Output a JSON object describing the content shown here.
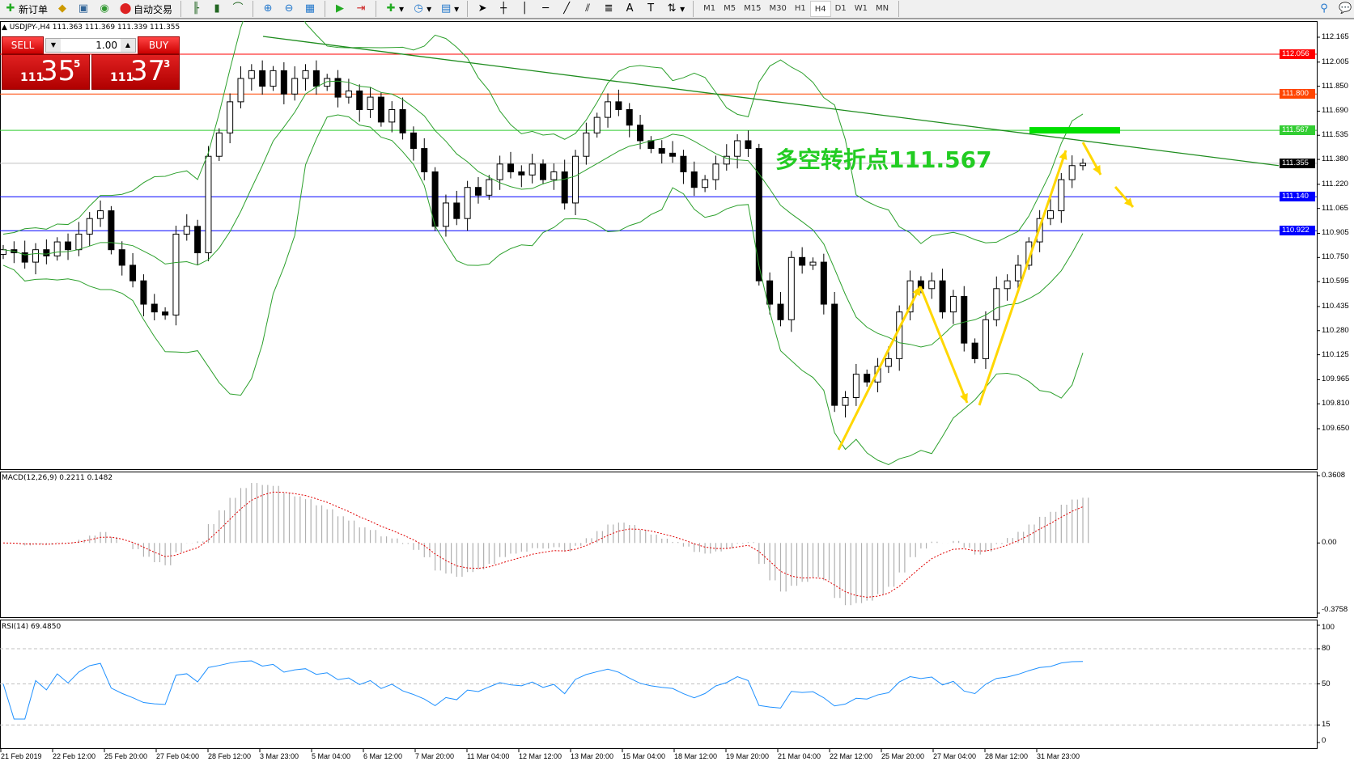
{
  "toolbar": {
    "new_order": "新订单",
    "auto_trading": "自动交易",
    "timeframes": [
      "M1",
      "M5",
      "M15",
      "M30",
      "H1",
      "H4",
      "D1",
      "W1",
      "MN"
    ],
    "active_timeframe": "H4"
  },
  "chart_header": "USDJPY-,H4  111.363 111.369 111.339 111.355",
  "trade_panel": {
    "sell_label": "SELL",
    "buy_label": "BUY",
    "lots": "1.00",
    "sell_prefix": "111",
    "sell_big": "35",
    "sell_sup": "5",
    "buy_prefix": "111",
    "buy_big": "37",
    "buy_sup": "3"
  },
  "annotation": "多空转折点111.567",
  "colors": {
    "bull": "#ffffff",
    "bear": "#000000",
    "bands": "#2ca02c",
    "trendline": "#1e8c1e",
    "macd_signal": "#e00000",
    "macd_hist": "#b0b0b0",
    "rsi": "#1e90ff",
    "arrows": "#ffd700",
    "zone": "#00e000"
  },
  "chart_data": [
    {
      "type": "candlestick",
      "symbol": "USDJPY-",
      "timeframe": "H4",
      "ylim": [
        109.65,
        112.165
      ],
      "y_ticks": [
        "112.165",
        "112.005",
        "111.850",
        "111.690",
        "111.535",
        "111.380",
        "111.220",
        "111.065",
        "110.905",
        "110.750",
        "110.595",
        "110.435",
        "110.280",
        "110.125",
        "109.965",
        "109.810",
        "109.650"
      ],
      "closes": [
        110.8,
        110.78,
        110.72,
        110.8,
        110.76,
        110.85,
        110.8,
        110.9,
        111.0,
        111.05,
        110.8,
        110.7,
        110.6,
        110.45,
        110.4,
        110.38,
        110.9,
        110.95,
        110.78,
        111.4,
        111.55,
        111.75,
        111.9,
        111.95,
        111.85,
        111.95,
        111.8,
        111.9,
        111.95,
        111.85,
        111.9,
        111.78,
        111.82,
        111.7,
        111.78,
        111.62,
        111.7,
        111.55,
        111.45,
        111.3,
        110.95,
        111.1,
        111.0,
        111.2,
        111.15,
        111.25,
        111.35,
        111.3,
        111.28,
        111.35,
        111.25,
        111.3,
        111.1,
        111.4,
        111.55,
        111.65,
        111.75,
        111.7,
        111.6,
        111.5,
        111.45,
        111.42,
        111.4,
        111.3,
        111.2,
        111.25,
        111.35,
        111.4,
        111.5,
        111.45,
        110.6,
        110.45,
        110.35,
        110.75,
        110.7,
        110.72,
        110.45,
        109.8,
        109.85,
        110.0,
        109.95,
        110.05,
        110.1,
        110.4,
        110.6,
        110.55,
        110.6,
        110.4,
        110.5,
        110.2,
        110.1,
        110.35,
        110.55,
        110.6,
        110.7,
        110.85,
        111.0,
        111.05,
        111.25,
        111.34,
        111.355
      ],
      "indicator": "Bollinger Bands (20)",
      "hlines": [
        {
          "price": "112.056",
          "color": "#ff0000"
        },
        {
          "price": "111.800",
          "color": "#ff4500"
        },
        {
          "price": "111.567",
          "color": "#32cd32"
        },
        {
          "price": "111.355",
          "color": "#000000",
          "line": "#c0c0c0"
        },
        {
          "price": "111.140",
          "color": "#0000ff"
        },
        {
          "price": "110.922",
          "color": "#0000ff"
        }
      ],
      "x_ticks": [
        "21 Feb 2019",
        "22 Feb 12:00",
        "25 Feb 20:00",
        "27 Feb 04:00",
        "28 Feb 12:00",
        "3 Mar 23:00",
        "5 Mar 04:00",
        "6 Mar 12:00",
        "7 Mar 20:00",
        "11 Mar 04:00",
        "12 Mar 12:00",
        "13 Mar 20:00",
        "15 Mar 04:00",
        "18 Mar 12:00",
        "19 Mar 20:00",
        "21 Mar 04:00",
        "22 Mar 12:00",
        "25 Mar 20:00",
        "27 Mar 04:00",
        "28 Mar 12:00",
        "31 Mar 23:00"
      ]
    },
    {
      "type": "macd",
      "label": "MACD(12,26,9) 0.2211 0.1482",
      "ylim": [
        -0.3758,
        0.3608
      ],
      "y_ticks": [
        "0.3608",
        "0.00",
        "-0.3758"
      ]
    },
    {
      "type": "line",
      "label": "RSI(14) 69.4850",
      "ylim": [
        0,
        100
      ],
      "y_ticks": [
        "100",
        "80",
        "50",
        "15",
        "0"
      ],
      "levels": [
        80,
        50,
        15
      ]
    }
  ]
}
